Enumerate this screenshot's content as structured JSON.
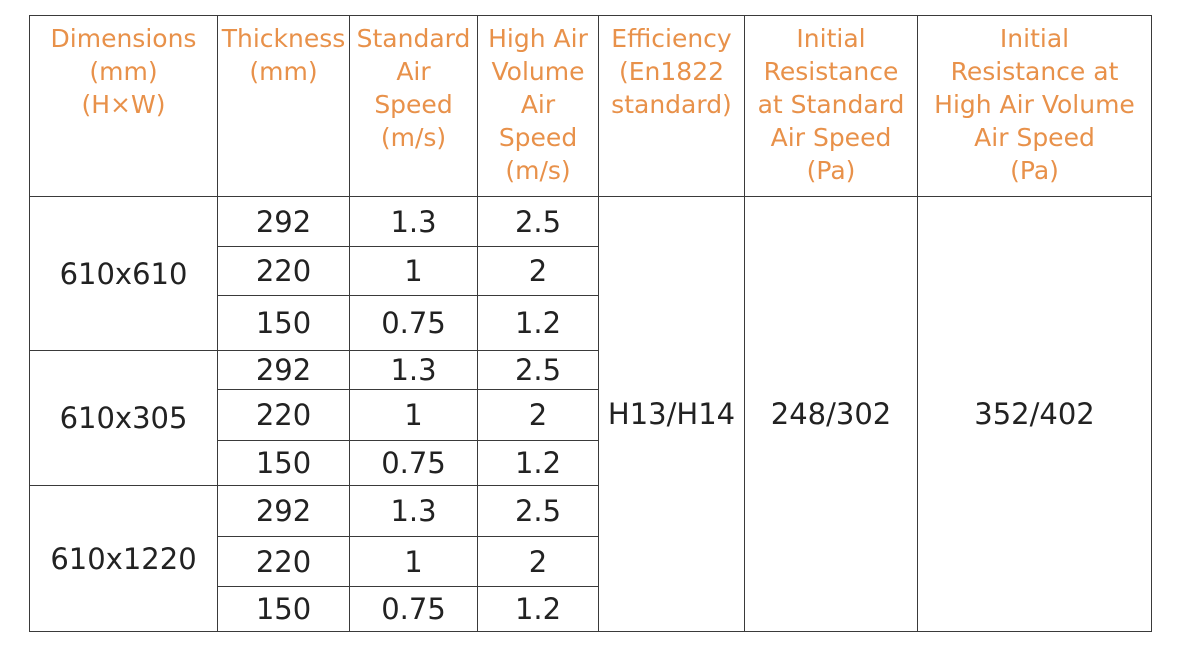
{
  "colors": {
    "header_text": "#e8914a",
    "body_text": "#222222",
    "border": "#3a3a3a"
  },
  "headers": [
    [
      "Dimensions",
      "(mm)",
      "(H×W)"
    ],
    [
      "Thickness",
      "(mm)"
    ],
    [
      "Standard",
      "Air",
      "Speed",
      "(m/s)"
    ],
    [
      "High Air",
      "Volume",
      "Air",
      "Speed",
      "(m/s)"
    ],
    [
      "Efficiency",
      "(En1822",
      "standard)"
    ],
    [
      "Initial",
      "Resistance",
      "at Standard",
      "Air Speed",
      "(Pa)"
    ],
    [
      "Initial",
      "Resistance at",
      "High Air Volume",
      "Air Speed",
      "(Pa)"
    ]
  ],
  "groups": [
    {
      "dimension": "610x610",
      "rows": [
        {
          "thickness": "292",
          "standard": "1.3",
          "high": "2.5"
        },
        {
          "thickness": "220",
          "standard": "1",
          "high": "2"
        },
        {
          "thickness": "150",
          "standard": "0.75",
          "high": "1.2"
        }
      ]
    },
    {
      "dimension": "610x305",
      "rows": [
        {
          "thickness": "292",
          "standard": "1.3",
          "high": "2.5"
        },
        {
          "thickness": "220",
          "standard": "1",
          "high": "2"
        },
        {
          "thickness": "150",
          "standard": "0.75",
          "high": "1.2"
        }
      ]
    },
    {
      "dimension": "610x1220",
      "rows": [
        {
          "thickness": "292",
          "standard": "1.3",
          "high": "2.5"
        },
        {
          "thickness": "220",
          "standard": "1",
          "high": "2"
        },
        {
          "thickness": "150",
          "standard": "0.75",
          "high": "1.2"
        }
      ]
    }
  ],
  "efficiency": "H13/H14",
  "initial_resistance_standard": "248/302",
  "initial_resistance_high": "352/402"
}
